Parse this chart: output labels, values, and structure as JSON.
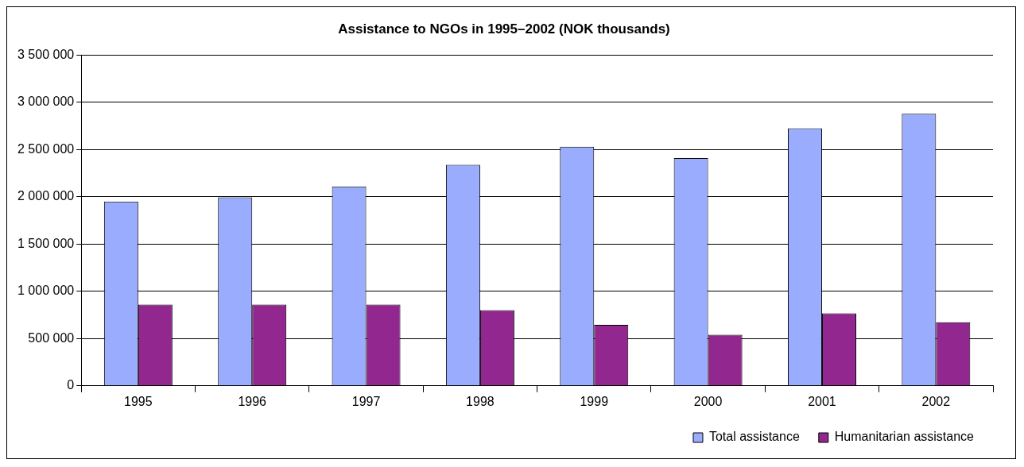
{
  "chart_data": {
    "type": "bar",
    "title": "Assistance to NGOs in 1995–2002 (NOK thousands)",
    "categories": [
      "1995",
      "1996",
      "1997",
      "1998",
      "1999",
      "2000",
      "2001",
      "2002"
    ],
    "series": [
      {
        "name": "Total assistance",
        "color": "#99acfe",
        "values": [
          1950000,
          1995000,
          2110000,
          2340000,
          2530000,
          2410000,
          2725000,
          2880000
        ]
      },
      {
        "name": "Humanitarian assistance",
        "color": "#92278f",
        "values": [
          860000,
          860000,
          860000,
          800000,
          645000,
          540000,
          767000,
          673000
        ]
      }
    ],
    "ylim": [
      0,
      3500000
    ],
    "yticks": [
      {
        "value": 0,
        "label": "0"
      },
      {
        "value": 500000,
        "label": "500 000"
      },
      {
        "value": 1000000,
        "label": "1 000 000"
      },
      {
        "value": 1500000,
        "label": "1 500 000"
      },
      {
        "value": 2000000,
        "label": "2 000 000"
      },
      {
        "value": 2500000,
        "label": "2 500 000"
      },
      {
        "value": 3000000,
        "label": "3 000 000"
      },
      {
        "value": 3500000,
        "label": "3 500 000"
      }
    ],
    "grid": "y",
    "legend": "bottom right"
  }
}
